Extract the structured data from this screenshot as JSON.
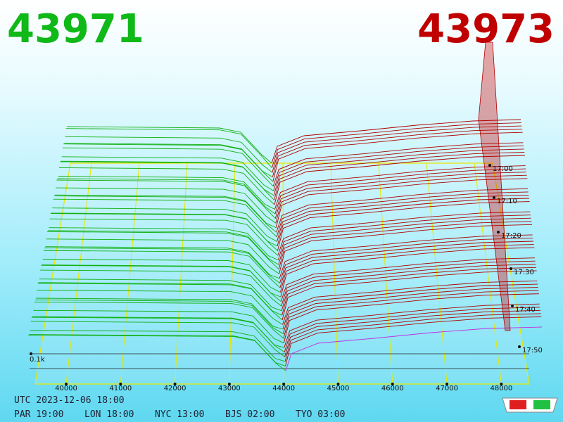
{
  "header": {
    "bid": "43971",
    "ask": "43973"
  },
  "price_axis": {
    "ticks": [
      "40000",
      "41000",
      "42000",
      "43000",
      "44000",
      "45000",
      "46000",
      "47000",
      "48000"
    ]
  },
  "time_axis": {
    "ticks": [
      "17:00",
      "17:10",
      "17:20",
      "17:30",
      "17:40",
      "17:50"
    ]
  },
  "depth_label": "0.1k",
  "footer": {
    "utc": "UTC 2023-12-06 18:00",
    "zones": [
      "PAR 19:00",
      "LON 18:00",
      "NYC 13:00",
      "BJS 02:00",
      "TYO 03:00"
    ]
  }
}
